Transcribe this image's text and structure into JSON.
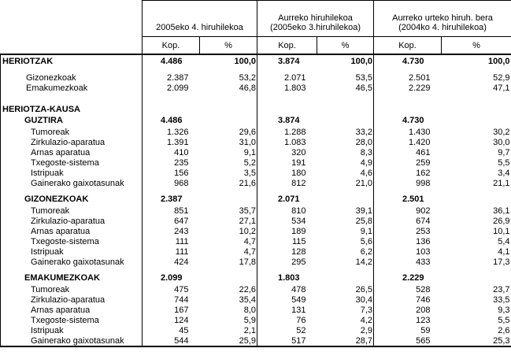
{
  "header": {
    "groups": [
      {
        "line1": "",
        "line2": "2005eko 4. hiruhilekoa"
      },
      {
        "line1": "Aurreko hiruhilekoa",
        "line2": "(2005eko 3.hiruhilekoa)"
      },
      {
        "line1": "Aurreko urteko hiruh. bera",
        "line2": "(2004ko 4. hiruhilekoa)"
      }
    ],
    "kop": "Kop.",
    "pct": "%"
  },
  "rows": [
    {
      "type": "sec",
      "label": "HERIOTZAK",
      "v": [
        "4.486",
        "100,0",
        "3.874",
        "100,0",
        "4.730",
        "100,0"
      ],
      "bold": true
    },
    {
      "type": "sp"
    },
    {
      "type": "item",
      "label": "Gizonezkoak",
      "v": [
        "2.387",
        "53,2",
        "2.071",
        "53,5",
        "2.501",
        "52,9"
      ]
    },
    {
      "type": "item",
      "label": "Emakumezkoak",
      "v": [
        "2.099",
        "46,8",
        "1.803",
        "46,5",
        "2.229",
        "47,1"
      ]
    },
    {
      "type": "sp2"
    },
    {
      "type": "sec",
      "label": "HERIOTZA-KAUSA",
      "v": [
        "",
        "",
        "",
        "",
        "",
        ""
      ]
    },
    {
      "type": "sub",
      "label": "GUZTIRA",
      "v": [
        "4.486",
        "",
        "3.874",
        "",
        "4.730",
        ""
      ],
      "bold": true
    },
    {
      "type": "item2",
      "label": "Tumoreak",
      "v": [
        "1.326",
        "29,6",
        "1.288",
        "33,2",
        "1.430",
        "30,2"
      ]
    },
    {
      "type": "item2",
      "label": "Zirkulazio-aparatua",
      "v": [
        "1.391",
        "31,0",
        "1.083",
        "28,0",
        "1.420",
        "30,0"
      ]
    },
    {
      "type": "item2",
      "label": "Arnas aparatua",
      "v": [
        "410",
        "9,1",
        "320",
        "8,3",
        "461",
        "9,7"
      ]
    },
    {
      "type": "item2",
      "label": "Txegoste-sistema",
      "v": [
        "235",
        "5,2",
        "191",
        "4,9",
        "259",
        "5,5"
      ]
    },
    {
      "type": "item2",
      "label": "Istripuak",
      "v": [
        "156",
        "3,5",
        "180",
        "4,6",
        "162",
        "3,4"
      ]
    },
    {
      "type": "item2",
      "label": "Gainerako gaixotasunak",
      "v": [
        "968",
        "21,6",
        "812",
        "21,0",
        "998",
        "21,1"
      ]
    },
    {
      "type": "sp"
    },
    {
      "type": "sub",
      "label": "GIZONEZKOAK",
      "v": [
        "2.387",
        "",
        "2.071",
        "",
        "2.501",
        ""
      ],
      "bold": true
    },
    {
      "type": "item2",
      "label": "Tumoreak",
      "v": [
        "851",
        "35,7",
        "810",
        "39,1",
        "902",
        "36,1"
      ]
    },
    {
      "type": "item2",
      "label": "Zirkulazio-aparatua",
      "v": [
        "647",
        "27,1",
        "534",
        "25,8",
        "674",
        "26,9"
      ]
    },
    {
      "type": "item2",
      "label": "Arnas aparatua",
      "v": [
        "243",
        "10,2",
        "189",
        "9,1",
        "253",
        "10,1"
      ]
    },
    {
      "type": "item2",
      "label": "Txegoste-sistema",
      "v": [
        "111",
        "4,7",
        "115",
        "5,6",
        "136",
        "5,4"
      ]
    },
    {
      "type": "item2",
      "label": "Istripuak",
      "v": [
        "111",
        "4,7",
        "128",
        "6,2",
        "103",
        "4,1"
      ]
    },
    {
      "type": "item2",
      "label": "Gainerako gaixotasunak",
      "v": [
        "424",
        "17,8",
        "295",
        "14,2",
        "433",
        "17,3"
      ]
    },
    {
      "type": "sp"
    },
    {
      "type": "sub",
      "label": "EMAKUMEZKOAK",
      "v": [
        "2.099",
        "",
        "1.803",
        "",
        "2.229",
        ""
      ],
      "bold": true
    },
    {
      "type": "item2",
      "label": "Tumoreak",
      "v": [
        "475",
        "22,6",
        "478",
        "26,5",
        "528",
        "23,7"
      ]
    },
    {
      "type": "item2",
      "label": "Zirkulazio-aparatua",
      "v": [
        "744",
        "35,4",
        "549",
        "30,4",
        "746",
        "33,5"
      ]
    },
    {
      "type": "item2",
      "label": "Arnas aparatua",
      "v": [
        "167",
        "8,0",
        "131",
        "7,3",
        "208",
        "9,3"
      ]
    },
    {
      "type": "item2",
      "label": "Txegoste-sistema",
      "v": [
        "124",
        "5,9",
        "76",
        "4,2",
        "123",
        "5,5"
      ]
    },
    {
      "type": "item2",
      "label": "Istripuak",
      "v": [
        "45",
        "2,1",
        "52",
        "2,9",
        "59",
        "2,6"
      ]
    },
    {
      "type": "item2",
      "label": "Gainerako gaixotasunak",
      "v": [
        "544",
        "25,9",
        "517",
        "28,7",
        "565",
        "25,3"
      ]
    }
  ]
}
